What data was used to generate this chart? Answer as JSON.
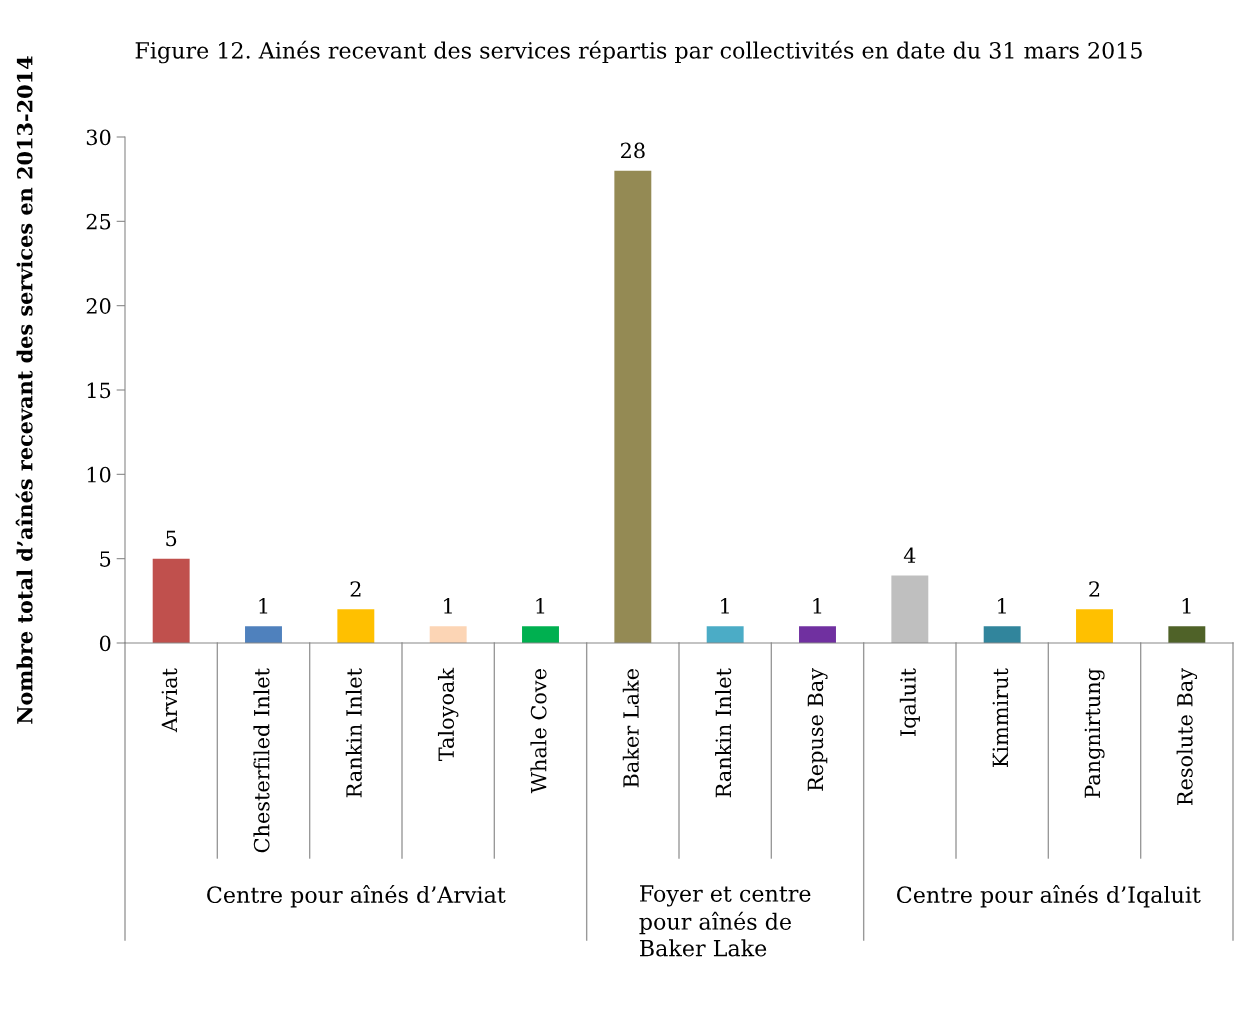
{
  "chart_data": {
    "type": "bar",
    "title": "Figure 12. Ainés recevant des services répartis par collectivités en date du 31 mars 2015",
    "ylabel": "Nombre total d’aînés recevant des services en 2013-2014",
    "categories": [
      "Arviat",
      "Chesterfiled Inlet",
      "Rankin Inlet",
      "Taloyoak",
      "Whale Cove",
      "Baker Lake",
      "Rankin Inlet",
      "Repuse Bay",
      "Iqaluit",
      "Kimmirut",
      "Pangnirtung",
      "Resolute Bay"
    ],
    "values": [
      5,
      1,
      2,
      1,
      1,
      28,
      1,
      1,
      4,
      1,
      2,
      1
    ],
    "colors": [
      "#c0504d",
      "#4f81bd",
      "#ffc000",
      "#fcd5b5",
      "#00b050",
      "#948a54",
      "#4bacc6",
      "#7030a0",
      "#bfbfbf",
      "#31859c",
      "#ffc000",
      "#4f6228"
    ],
    "ylim": [
      0,
      30
    ],
    "yticks": [
      0,
      5,
      10,
      15,
      20,
      25,
      30
    ],
    "data_labels": true,
    "grid": false,
    "legend": false,
    "annotations": [
      "Centre pour aînés d’Arviat",
      "Foyer et centre\npour aînés de\nBaker Lake",
      "Centre pour aînés d’Iqaluit"
    ]
  }
}
